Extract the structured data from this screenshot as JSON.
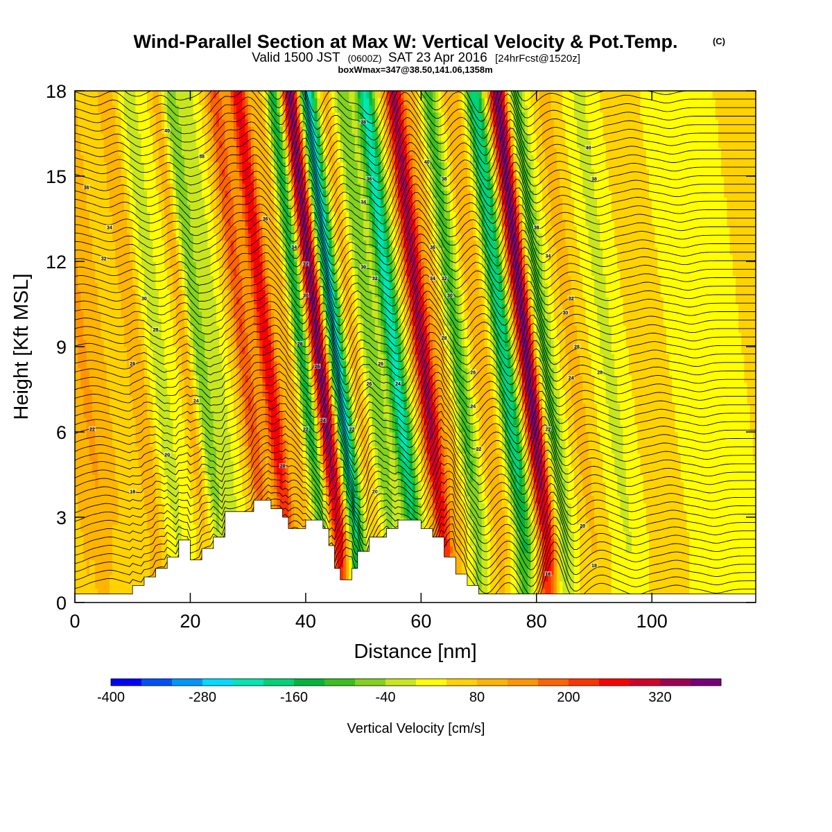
{
  "titles": {
    "main": "Wind-Parallel Section at Max W: Vertical Velocity & Pot.Temp.",
    "main_tag": "(C)",
    "sub_1": "Valid 1500 JST",
    "sub_2": "(0600Z)",
    "sub_3": "SAT 23 Apr 2016",
    "sub_4": "[24hrFcst@1520z]",
    "sub_line3": "boxWmax=347@38.50,141.06,1358m"
  },
  "chart_data": {
    "type": "heatmap",
    "title": "Wind-Parallel Section at Max W: Vertical Velocity & Pot.Temp.",
    "xlabel": "Distance [nm]",
    "ylabel": "Height [Kft MSL]",
    "xlim": [
      0,
      118
    ],
    "ylim": [
      0,
      18
    ],
    "x_ticks": [
      0,
      20,
      40,
      60,
      80,
      100
    ],
    "y_ticks": [
      0,
      3,
      6,
      9,
      12,
      15,
      18
    ],
    "colorbar": {
      "title": "Vertical Velocity [cm/s]",
      "min": -400,
      "max": 400,
      "step": 40,
      "tick_values": [
        -400,
        -280,
        -160,
        -40,
        80,
        200,
        320
      ],
      "colors": [
        "#0000ff",
        "#0050ff",
        "#0096ff",
        "#00dcff",
        "#00e6b4",
        "#00d278",
        "#00b43c",
        "#3cbe1e",
        "#82d21e",
        "#c8e61e",
        "#ffff00",
        "#ffd200",
        "#ffb400",
        "#ff9600",
        "#ff6400",
        "#ff3200",
        "#ff0000",
        "#d20028",
        "#a00050",
        "#780078"
      ]
    },
    "w_bands": [
      {
        "x": 2,
        "w": 60
      },
      {
        "x": 5,
        "w": 90
      },
      {
        "x": 8,
        "w": 50
      },
      {
        "x": 14,
        "w": 80
      },
      {
        "x": 18,
        "w": -60
      },
      {
        "x": 21,
        "w": -20
      },
      {
        "x": 23,
        "w": 80
      },
      {
        "x": 25,
        "w": -120
      },
      {
        "x": 28,
        "w": -60
      },
      {
        "x": 33,
        "w": 160
      },
      {
        "x": 37,
        "w": 240
      },
      {
        "x": 41,
        "w": 80
      },
      {
        "x": 43,
        "w": -200
      },
      {
        "x": 46,
        "w": 340
      },
      {
        "x": 49,
        "w": -300
      },
      {
        "x": 52,
        "w": 60
      },
      {
        "x": 55,
        "w": -120
      },
      {
        "x": 59,
        "w": -260
      },
      {
        "x": 64,
        "w": 290
      },
      {
        "x": 67,
        "w": 60
      },
      {
        "x": 70,
        "w": -140
      },
      {
        "x": 74,
        "w": 80
      },
      {
        "x": 78,
        "w": -240
      },
      {
        "x": 82,
        "w": 340
      },
      {
        "x": 85,
        "w": -140
      },
      {
        "x": 90,
        "w": 60
      },
      {
        "x": 96,
        "w": -60
      },
      {
        "x": 103,
        "w": 40
      },
      {
        "x": 110,
        "w": -40
      }
    ],
    "terrain": [
      [
        0,
        0.3
      ],
      [
        10,
        0.3
      ],
      [
        10,
        0.6
      ],
      [
        12,
        0.6
      ],
      [
        12,
        0.9
      ],
      [
        14,
        0.9
      ],
      [
        14,
        1.2
      ],
      [
        16,
        1.2
      ],
      [
        16,
        1.6
      ],
      [
        18,
        1.6
      ],
      [
        18,
        2.2
      ],
      [
        20,
        2.2
      ],
      [
        20,
        1.5
      ],
      [
        22,
        1.5
      ],
      [
        22,
        1.9
      ],
      [
        24,
        1.9
      ],
      [
        24,
        2.3
      ],
      [
        26,
        2.3
      ],
      [
        26,
        3.2
      ],
      [
        31,
        3.2
      ],
      [
        31,
        3.6
      ],
      [
        34,
        3.6
      ],
      [
        34,
        3.3
      ],
      [
        36,
        3.3
      ],
      [
        36,
        3.0
      ],
      [
        37,
        3.0
      ],
      [
        37,
        2.6
      ],
      [
        40,
        2.6
      ],
      [
        40,
        2.9
      ],
      [
        43,
        2.9
      ],
      [
        43,
        2.6
      ],
      [
        44,
        2.6
      ],
      [
        44,
        2.0
      ],
      [
        45,
        2.0
      ],
      [
        45,
        1.2
      ],
      [
        46,
        1.2
      ],
      [
        46,
        0.8
      ],
      [
        48,
        0.8
      ],
      [
        48,
        1.2
      ],
      [
        49,
        1.2
      ],
      [
        49,
        1.8
      ],
      [
        51,
        1.8
      ],
      [
        51,
        2.3
      ],
      [
        54,
        2.3
      ],
      [
        54,
        2.6
      ],
      [
        56,
        2.6
      ],
      [
        56,
        2.9
      ],
      [
        60,
        2.9
      ],
      [
        60,
        2.6
      ],
      [
        62,
        2.6
      ],
      [
        62,
        2.3
      ],
      [
        64,
        2.3
      ],
      [
        64,
        1.6
      ],
      [
        66,
        1.6
      ],
      [
        66,
        1.0
      ],
      [
        68,
        1.0
      ],
      [
        68,
        0.6
      ],
      [
        70,
        0.6
      ],
      [
        70,
        0.3
      ],
      [
        118,
        0.3
      ]
    ],
    "theta_labels": [
      {
        "x": 16,
        "y": 16.6,
        "v": "40"
      },
      {
        "x": 22,
        "y": 15.7,
        "v": "38"
      },
      {
        "x": 2,
        "y": 14.6,
        "v": "36"
      },
      {
        "x": 33,
        "y": 13.5,
        "v": "36"
      },
      {
        "x": 6,
        "y": 13.2,
        "v": "34"
      },
      {
        "x": 5,
        "y": 12.1,
        "v": "32"
      },
      {
        "x": 12,
        "y": 10.7,
        "v": "30"
      },
      {
        "x": 14,
        "y": 9.6,
        "v": "28"
      },
      {
        "x": 10,
        "y": 8.4,
        "v": "26"
      },
      {
        "x": 21,
        "y": 7.1,
        "v": "24"
      },
      {
        "x": 3,
        "y": 6.1,
        "v": "22"
      },
      {
        "x": 16,
        "y": 5.2,
        "v": "20"
      },
      {
        "x": 10,
        "y": 3.9,
        "v": "18"
      },
      {
        "x": 50,
        "y": 16.9,
        "v": "38"
      },
      {
        "x": 61,
        "y": 15.5,
        "v": "40"
      },
      {
        "x": 51,
        "y": 14.9,
        "v": "36"
      },
      {
        "x": 50,
        "y": 14.1,
        "v": "34"
      },
      {
        "x": 64,
        "y": 14.9,
        "v": "38"
      },
      {
        "x": 38,
        "y": 12.5,
        "v": "34"
      },
      {
        "x": 40,
        "y": 11.9,
        "v": "32"
      },
      {
        "x": 40,
        "y": 10.8,
        "v": "30"
      },
      {
        "x": 39,
        "y": 9.1,
        "v": "28"
      },
      {
        "x": 42,
        "y": 8.3,
        "v": "26"
      },
      {
        "x": 43,
        "y": 6.4,
        "v": "24"
      },
      {
        "x": 40,
        "y": 6.1,
        "v": "22"
      },
      {
        "x": 36,
        "y": 4.8,
        "v": "20"
      },
      {
        "x": 50,
        "y": 11.8,
        "v": "30"
      },
      {
        "x": 52,
        "y": 11.4,
        "v": "32"
      },
      {
        "x": 62,
        "y": 12.5,
        "v": "36"
      },
      {
        "x": 62,
        "y": 11.4,
        "v": "34"
      },
      {
        "x": 64,
        "y": 11.4,
        "v": "32"
      },
      {
        "x": 65,
        "y": 10.8,
        "v": "30"
      },
      {
        "x": 64,
        "y": 9.3,
        "v": "28"
      },
      {
        "x": 53,
        "y": 8.4,
        "v": "26"
      },
      {
        "x": 51,
        "y": 7.7,
        "v": "26"
      },
      {
        "x": 56,
        "y": 7.7,
        "v": "24"
      },
      {
        "x": 48,
        "y": 6.1,
        "v": "22"
      },
      {
        "x": 52,
        "y": 3.9,
        "v": "20"
      },
      {
        "x": 69,
        "y": 8.1,
        "v": "26"
      },
      {
        "x": 69,
        "y": 6.9,
        "v": "24"
      },
      {
        "x": 70,
        "y": 5.4,
        "v": "22"
      },
      {
        "x": 80,
        "y": 13.2,
        "v": "38"
      },
      {
        "x": 82,
        "y": 12.2,
        "v": "34"
      },
      {
        "x": 86,
        "y": 10.7,
        "v": "32"
      },
      {
        "x": 85,
        "y": 10.2,
        "v": "30"
      },
      {
        "x": 87,
        "y": 9.0,
        "v": "28"
      },
      {
        "x": 91,
        "y": 8.1,
        "v": "28"
      },
      {
        "x": 86,
        "y": 7.9,
        "v": "24"
      },
      {
        "x": 82,
        "y": 6.1,
        "v": "22"
      },
      {
        "x": 88,
        "y": 2.7,
        "v": "20"
      },
      {
        "x": 90,
        "y": 1.3,
        "v": "18"
      },
      {
        "x": 82,
        "y": 1.0,
        "v": "16"
      },
      {
        "x": 89,
        "y": 16.0,
        "v": "40"
      },
      {
        "x": 90,
        "y": 14.9,
        "v": "38"
      }
    ]
  }
}
